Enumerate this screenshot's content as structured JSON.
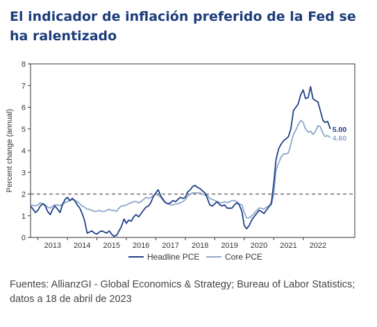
{
  "title": "El indicador de inflación preferido de la Fed se ha ralentizado",
  "source": "Fuentes: AllianzGI - Global Economics & Strategy; Bureau of Labor Statistics; datos a 18 de abril de 2023",
  "colors": {
    "title": "#1c3d7a",
    "headline": "#1f3f87",
    "core": "#8ea7cb",
    "reference": "#555555",
    "axis": "#333333"
  },
  "chart_data": {
    "type": "line",
    "ylabel": "Percent change (annual)",
    "xlabel": "",
    "ylim": [
      0,
      8
    ],
    "xlim": [
      2012.75,
      2023.75
    ],
    "yticks": [
      0,
      1,
      2,
      3,
      4,
      5,
      6,
      7,
      8
    ],
    "xticks": [
      "2013",
      "2014",
      "2015",
      "2016",
      "2017",
      "2018",
      "2019",
      "2020",
      "2021",
      "2022"
    ],
    "grid": false,
    "legend_position": "bottom",
    "reference_line": {
      "y": 2,
      "style": "dashed"
    },
    "series": [
      {
        "name": "Headline PCE",
        "end_label": "5.00",
        "color": "#1f3f87",
        "points": [
          [
            2012.75,
            1.45
          ],
          [
            2012.92,
            1.15
          ],
          [
            2013.0,
            1.25
          ],
          [
            2013.08,
            1.45
          ],
          [
            2013.17,
            1.55
          ],
          [
            2013.25,
            1.45
          ],
          [
            2013.33,
            1.2
          ],
          [
            2013.42,
            1.05
          ],
          [
            2013.5,
            1.3
          ],
          [
            2013.58,
            1.45
          ],
          [
            2013.67,
            1.3
          ],
          [
            2013.75,
            1.15
          ],
          [
            2013.83,
            1.5
          ],
          [
            2013.92,
            1.75
          ],
          [
            2014.0,
            1.85
          ],
          [
            2014.08,
            1.7
          ],
          [
            2014.17,
            1.8
          ],
          [
            2014.25,
            1.7
          ],
          [
            2014.33,
            1.5
          ],
          [
            2014.42,
            1.35
          ],
          [
            2014.5,
            1.1
          ],
          [
            2014.58,
            0.8
          ],
          [
            2014.67,
            0.2
          ],
          [
            2014.75,
            0.25
          ],
          [
            2014.83,
            0.3
          ],
          [
            2014.92,
            0.2
          ],
          [
            2015.0,
            0.15
          ],
          [
            2015.08,
            0.25
          ],
          [
            2015.17,
            0.3
          ],
          [
            2015.25,
            0.25
          ],
          [
            2015.33,
            0.2
          ],
          [
            2015.42,
            0.3
          ],
          [
            2015.5,
            0.15
          ],
          [
            2015.58,
            0.05
          ],
          [
            2015.67,
            0.1
          ],
          [
            2015.75,
            0.3
          ],
          [
            2015.83,
            0.5
          ],
          [
            2015.92,
            0.85
          ],
          [
            2016.0,
            0.65
          ],
          [
            2016.08,
            0.8
          ],
          [
            2016.17,
            0.75
          ],
          [
            2016.25,
            0.95
          ],
          [
            2016.33,
            1.05
          ],
          [
            2016.42,
            0.95
          ],
          [
            2016.5,
            1.1
          ],
          [
            2016.58,
            1.25
          ],
          [
            2016.67,
            1.4
          ],
          [
            2016.75,
            1.45
          ],
          [
            2016.83,
            1.6
          ],
          [
            2016.92,
            1.9
          ],
          [
            2017.0,
            2.05
          ],
          [
            2017.08,
            2.2
          ],
          [
            2017.17,
            1.9
          ],
          [
            2017.25,
            1.75
          ],
          [
            2017.33,
            1.6
          ],
          [
            2017.42,
            1.55
          ],
          [
            2017.5,
            1.6
          ],
          [
            2017.58,
            1.7
          ],
          [
            2017.67,
            1.65
          ],
          [
            2017.75,
            1.75
          ],
          [
            2017.83,
            1.85
          ],
          [
            2017.92,
            1.8
          ],
          [
            2018.0,
            1.85
          ],
          [
            2018.08,
            2.1
          ],
          [
            2018.17,
            2.2
          ],
          [
            2018.25,
            2.35
          ],
          [
            2018.33,
            2.4
          ],
          [
            2018.42,
            2.3
          ],
          [
            2018.5,
            2.25
          ],
          [
            2018.58,
            2.15
          ],
          [
            2018.67,
            2.05
          ],
          [
            2018.75,
            1.8
          ],
          [
            2018.83,
            1.5
          ],
          [
            2018.92,
            1.45
          ],
          [
            2019.0,
            1.55
          ],
          [
            2019.08,
            1.65
          ],
          [
            2019.17,
            1.5
          ],
          [
            2019.25,
            1.45
          ],
          [
            2019.33,
            1.5
          ],
          [
            2019.42,
            1.35
          ],
          [
            2019.5,
            1.35
          ],
          [
            2019.58,
            1.35
          ],
          [
            2019.67,
            1.5
          ],
          [
            2019.75,
            1.6
          ],
          [
            2019.83,
            1.5
          ],
          [
            2019.92,
            1.2
          ],
          [
            2020.0,
            0.55
          ],
          [
            2020.08,
            0.4
          ],
          [
            2020.17,
            0.55
          ],
          [
            2020.25,
            0.8
          ],
          [
            2020.33,
            0.95
          ],
          [
            2020.42,
            1.1
          ],
          [
            2020.5,
            1.25
          ],
          [
            2020.58,
            1.2
          ],
          [
            2020.67,
            1.1
          ],
          [
            2020.75,
            1.25
          ],
          [
            2020.83,
            1.4
          ],
          [
            2020.92,
            1.6
          ],
          [
            2021.0,
            2.5
          ],
          [
            2021.08,
            3.6
          ],
          [
            2021.17,
            4.1
          ],
          [
            2021.25,
            4.3
          ],
          [
            2021.33,
            4.45
          ],
          [
            2021.42,
            4.55
          ],
          [
            2021.5,
            4.65
          ],
          [
            2021.58,
            5.0
          ],
          [
            2021.67,
            5.85
          ],
          [
            2021.75,
            6.0
          ],
          [
            2021.83,
            6.15
          ],
          [
            2021.92,
            6.6
          ],
          [
            2022.0,
            6.8
          ],
          [
            2022.08,
            6.4
          ],
          [
            2022.17,
            6.45
          ],
          [
            2022.25,
            6.95
          ],
          [
            2022.33,
            6.4
          ],
          [
            2022.42,
            6.3
          ],
          [
            2022.5,
            6.25
          ],
          [
            2022.58,
            5.85
          ],
          [
            2022.67,
            5.4
          ],
          [
            2022.75,
            5.3
          ],
          [
            2022.83,
            5.35
          ],
          [
            2022.92,
            5.0
          ]
        ]
      },
      {
        "name": "Core PCE",
        "end_label": "4.60",
        "color": "#8ea7cb",
        "points": [
          [
            2012.75,
            1.5
          ],
          [
            2012.92,
            1.45
          ],
          [
            2013.0,
            1.5
          ],
          [
            2013.08,
            1.6
          ],
          [
            2013.17,
            1.55
          ],
          [
            2013.25,
            1.5
          ],
          [
            2013.33,
            1.4
          ],
          [
            2013.42,
            1.35
          ],
          [
            2013.5,
            1.45
          ],
          [
            2013.58,
            1.5
          ],
          [
            2013.67,
            1.5
          ],
          [
            2013.75,
            1.45
          ],
          [
            2013.83,
            1.55
          ],
          [
            2013.92,
            1.6
          ],
          [
            2014.0,
            1.65
          ],
          [
            2014.08,
            1.7
          ],
          [
            2014.17,
            1.75
          ],
          [
            2014.25,
            1.7
          ],
          [
            2014.33,
            1.65
          ],
          [
            2014.42,
            1.55
          ],
          [
            2014.5,
            1.45
          ],
          [
            2014.58,
            1.4
          ],
          [
            2014.67,
            1.3
          ],
          [
            2014.75,
            1.3
          ],
          [
            2014.83,
            1.25
          ],
          [
            2014.92,
            1.2
          ],
          [
            2015.0,
            1.2
          ],
          [
            2015.08,
            1.25
          ],
          [
            2015.17,
            1.2
          ],
          [
            2015.25,
            1.2
          ],
          [
            2015.33,
            1.25
          ],
          [
            2015.42,
            1.3
          ],
          [
            2015.5,
            1.25
          ],
          [
            2015.58,
            1.25
          ],
          [
            2015.67,
            1.2
          ],
          [
            2015.75,
            1.35
          ],
          [
            2015.83,
            1.45
          ],
          [
            2015.92,
            1.45
          ],
          [
            2016.0,
            1.5
          ],
          [
            2016.08,
            1.55
          ],
          [
            2016.17,
            1.6
          ],
          [
            2016.25,
            1.65
          ],
          [
            2016.33,
            1.65
          ],
          [
            2016.42,
            1.6
          ],
          [
            2016.5,
            1.65
          ],
          [
            2016.58,
            1.75
          ],
          [
            2016.67,
            1.85
          ],
          [
            2016.75,
            1.8
          ],
          [
            2016.83,
            1.85
          ],
          [
            2016.92,
            1.9
          ],
          [
            2017.0,
            2.0
          ],
          [
            2017.08,
            1.95
          ],
          [
            2017.17,
            1.85
          ],
          [
            2017.25,
            1.7
          ],
          [
            2017.33,
            1.6
          ],
          [
            2017.42,
            1.55
          ],
          [
            2017.5,
            1.5
          ],
          [
            2017.58,
            1.5
          ],
          [
            2017.67,
            1.55
          ],
          [
            2017.75,
            1.55
          ],
          [
            2017.83,
            1.6
          ],
          [
            2017.92,
            1.65
          ],
          [
            2018.0,
            1.75
          ],
          [
            2018.08,
            1.9
          ],
          [
            2018.17,
            2.0
          ],
          [
            2018.25,
            2.05
          ],
          [
            2018.33,
            2.05
          ],
          [
            2018.42,
            2.05
          ],
          [
            2018.5,
            2.05
          ],
          [
            2018.58,
            2.0
          ],
          [
            2018.67,
            1.95
          ],
          [
            2018.75,
            1.95
          ],
          [
            2018.83,
            1.8
          ],
          [
            2018.92,
            1.75
          ],
          [
            2019.0,
            1.7
          ],
          [
            2019.08,
            1.65
          ],
          [
            2019.17,
            1.6
          ],
          [
            2019.25,
            1.6
          ],
          [
            2019.33,
            1.65
          ],
          [
            2019.42,
            1.6
          ],
          [
            2019.5,
            1.65
          ],
          [
            2019.58,
            1.7
          ],
          [
            2019.67,
            1.7
          ],
          [
            2019.75,
            1.65
          ],
          [
            2019.83,
            1.55
          ],
          [
            2019.92,
            1.5
          ],
          [
            2020.0,
            1.15
          ],
          [
            2020.08,
            0.9
          ],
          [
            2020.17,
            0.9
          ],
          [
            2020.25,
            1.0
          ],
          [
            2020.33,
            1.1
          ],
          [
            2020.42,
            1.25
          ],
          [
            2020.5,
            1.35
          ],
          [
            2020.58,
            1.35
          ],
          [
            2020.67,
            1.3
          ],
          [
            2020.75,
            1.4
          ],
          [
            2020.83,
            1.45
          ],
          [
            2020.92,
            1.5
          ],
          [
            2021.0,
            2.0
          ],
          [
            2021.08,
            3.1
          ],
          [
            2021.17,
            3.45
          ],
          [
            2021.25,
            3.7
          ],
          [
            2021.33,
            3.85
          ],
          [
            2021.42,
            3.85
          ],
          [
            2021.5,
            3.9
          ],
          [
            2021.58,
            4.3
          ],
          [
            2021.67,
            4.75
          ],
          [
            2021.75,
            4.95
          ],
          [
            2021.83,
            5.2
          ],
          [
            2021.92,
            5.4
          ],
          [
            2022.0,
            5.3
          ],
          [
            2022.08,
            5.0
          ],
          [
            2022.17,
            4.85
          ],
          [
            2022.25,
            4.9
          ],
          [
            2022.33,
            4.75
          ],
          [
            2022.42,
            4.9
          ],
          [
            2022.5,
            5.15
          ],
          [
            2022.58,
            5.1
          ],
          [
            2022.67,
            4.8
          ],
          [
            2022.75,
            4.65
          ],
          [
            2022.83,
            4.7
          ],
          [
            2022.92,
            4.6
          ]
        ]
      }
    ]
  }
}
